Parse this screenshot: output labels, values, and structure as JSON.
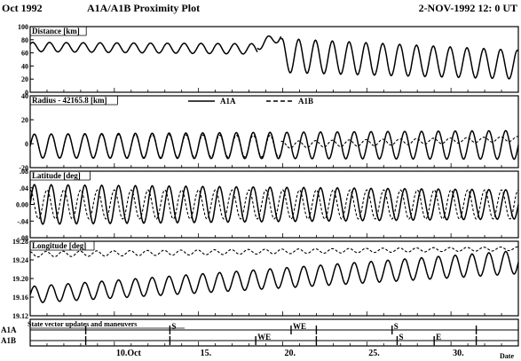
{
  "header": {
    "left": "Oct 1992",
    "title": "A1A/A1B Proximity Plot",
    "right": "2-NOV-1992 12: 0 UT"
  },
  "chart_data": {
    "x": {
      "start_day": 5,
      "end_day": 34,
      "tick_days": [
        10,
        15,
        20,
        25,
        30
      ],
      "tick_labels": [
        "10.Oct",
        "15.",
        "20.",
        "25.",
        "30."
      ],
      "label": "Date"
    },
    "panels": [
      {
        "id": "distance",
        "type": "line",
        "title": "Distance [km]",
        "ylim": [
          0,
          100
        ],
        "ticks": [
          0,
          20,
          40,
          60,
          80,
          100
        ],
        "series": [
          {
            "id": "distance",
            "style": "solid",
            "segments": [
              {
                "from": 5,
                "to": 18.5,
                "mean": [
                  69,
                  66
                ],
                "amplitude": [
                  7,
                  8
                ],
                "period": 1.0,
                "phase": 0.1
              },
              {
                "from": 18.5,
                "to": 19.9,
                "mean": [
                  72,
                  85
                ],
                "amplitude": [
                  8,
                  7
                ],
                "period": 1.0,
                "phase": 0.1
              },
              {
                "from": 19.9,
                "to": 34,
                "mean": [
                  56,
                  42
                ],
                "amplitude": [
                  26,
                  22
                ],
                "period": 1.0,
                "phase": 0.3
              }
            ]
          }
        ]
      },
      {
        "id": "radius",
        "type": "line",
        "title": "Radius - 42165.8 [km]",
        "ylim": [
          -20,
          40
        ],
        "ticks": [
          -20,
          0,
          20,
          40
        ],
        "legend": {
          "position": "top-center",
          "entries": [
            {
              "label": "A1A",
              "style": "solid"
            },
            {
              "label": "A1B",
              "style": "dashed"
            }
          ]
        },
        "series": [
          {
            "id": "A1A",
            "style": "solid",
            "segments": [
              {
                "from": 5,
                "to": 34,
                "mean": [
                  -2,
                  -1
                ],
                "amplitude": [
                  10,
                  12
                ],
                "period": 1.0,
                "phase": 0.0
              }
            ]
          },
          {
            "id": "A1B",
            "style": "dashed",
            "segments": [
              {
                "from": 5,
                "to": 19.9,
                "mean": [
                  -2,
                  -2
                ],
                "amplitude": [
                  10,
                  9
                ],
                "period": 1.0,
                "phase": 0.0
              },
              {
                "from": 19.9,
                "to": 34,
                "mean": [
                  -1,
                  4
                ],
                "amplitude": [
                  3,
                  2
                ],
                "period": 1.0,
                "phase": 0.3
              }
            ]
          }
        ]
      },
      {
        "id": "latitude",
        "type": "line",
        "title": "Latitude [deg]",
        "ylim": [
          -0.08,
          0.08
        ],
        "ticks": [
          -0.08,
          -0.04,
          0.0,
          0.04,
          0.08
        ],
        "series": [
          {
            "id": "A1A",
            "style": "solid",
            "segments": [
              {
                "from": 5,
                "to": 34,
                "mean": [
                  0.0,
                  0.0
                ],
                "amplitude": [
                  0.048,
                  0.035
                ],
                "period": 1.0,
                "phase": 0.0
              }
            ]
          },
          {
            "id": "A1B",
            "style": "dashed",
            "segments": [
              {
                "from": 5,
                "to": 34,
                "mean": [
                  0.0,
                  0.0
                ],
                "amplitude": [
                  0.035,
                  0.035
                ],
                "period": 1.0,
                "phase": 0.25
              }
            ]
          }
        ]
      },
      {
        "id": "longitude",
        "type": "line",
        "title": "Longitude [deg]",
        "ylim": [
          19.12,
          19.28
        ],
        "ticks": [
          19.12,
          19.16,
          19.2,
          19.24,
          19.28
        ],
        "series": [
          {
            "id": "A1B",
            "style": "dashed",
            "segments": [
              {
                "from": 5,
                "to": 34,
                "mean": [
                  19.252,
                  19.264
                ],
                "amplitude": [
                  0.006,
                  0.004
                ],
                "period": 1.0,
                "phase": 0.3
              }
            ]
          },
          {
            "id": "A1A",
            "style": "solid",
            "segments": [
              {
                "from": 5,
                "to": 34,
                "mean": [
                  19.165,
                  19.235
                ],
                "amplitude": [
                  0.018,
                  0.025
                ],
                "period": 1.0,
                "phase": 0.0
              }
            ]
          }
        ]
      }
    ],
    "events": {
      "title": "State vector updates and maneuvers",
      "rows": [
        {
          "label": "A1A",
          "marks": [
            {
              "day": 8.3,
              "text": ""
            },
            {
              "day": 13.3,
              "text": "S"
            },
            {
              "day": 20.5,
              "text": "WE"
            },
            {
              "day": 22.0,
              "text": ""
            },
            {
              "day": 26.5,
              "text": "S"
            },
            {
              "day": 31.5,
              "text": ""
            }
          ]
        },
        {
          "label": "A1B",
          "marks": [
            {
              "day": 8.3,
              "text": ""
            },
            {
              "day": 13.3,
              "text": ""
            },
            {
              "day": 18.4,
              "text": "WE"
            },
            {
              "day": 22.0,
              "text": ""
            },
            {
              "day": 26.8,
              "text": "S"
            },
            {
              "day": 29.0,
              "text": "E"
            },
            {
              "day": 31.5,
              "text": ""
            }
          ]
        }
      ]
    }
  }
}
